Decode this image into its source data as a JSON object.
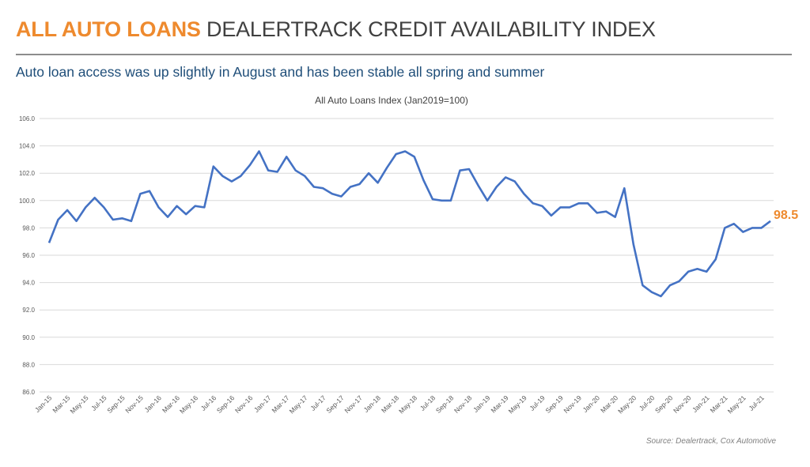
{
  "header": {
    "title_highlight": "ALL AUTO LOANS",
    "title_rest": "DEALERTRACK CREDIT AVAILABILITY INDEX",
    "subtitle": "Auto loan access was up slightly in August and has been stable all spring and summer"
  },
  "colors": {
    "accent": "#ee8a2e",
    "line": "#4472c4",
    "subtitle": "#1f4e79",
    "grid": "#d9d9d9"
  },
  "chart_data": {
    "type": "line",
    "title": "All Auto Loans Index (Jan2019=100)",
    "xlabel": "",
    "ylabel": "",
    "ylim": [
      86.0,
      106.0
    ],
    "yticks": [
      "86.0",
      "88.0",
      "90.0",
      "92.0",
      "94.0",
      "96.0",
      "98.0",
      "100.0",
      "102.0",
      "104.0",
      "106.0"
    ],
    "grid": true,
    "legend": "none",
    "x_tick_labels": [
      "Jan-15",
      "Mar-15",
      "May-15",
      "Jul-15",
      "Sep-15",
      "Nov-15",
      "Jan-16",
      "Mar-16",
      "May-16",
      "Jul-16",
      "Sep-16",
      "Nov-16",
      "Jan-17",
      "Mar-17",
      "May-17",
      "Jul-17",
      "Sep-17",
      "Nov-17",
      "Jan-18",
      "Mar-18",
      "May-18",
      "Jul-18",
      "Sep-18",
      "Nov-18",
      "Jan-19",
      "Mar-19",
      "May-19",
      "Jul-19",
      "Sep-19",
      "Nov-19",
      "Jan-20",
      "Mar-20",
      "May-20",
      "Jul-20",
      "Sep-20",
      "Nov-20",
      "Jan-21",
      "Mar-21",
      "May-21",
      "Jul-21"
    ],
    "series": [
      {
        "values": [
          96.9,
          98.6,
          99.3,
          98.5,
          99.5,
          100.2,
          99.5,
          98.6,
          98.7,
          98.5,
          100.5,
          100.7,
          99.5,
          98.8,
          99.6,
          99.0,
          99.6,
          99.5,
          102.5,
          101.8,
          101.4,
          101.8,
          102.6,
          103.6,
          102.2,
          102.1,
          103.2,
          102.2,
          101.8,
          101.0,
          100.9,
          100.5,
          100.3,
          101.0,
          101.2,
          102.0,
          101.3,
          102.4,
          103.4,
          103.6,
          103.2,
          101.5,
          100.1,
          100.0,
          100.0,
          102.2,
          102.3,
          101.1,
          100.0,
          101.0,
          101.7,
          101.4,
          100.5,
          99.8,
          99.6,
          98.9,
          99.5,
          99.5,
          99.8,
          99.8,
          99.1,
          99.2,
          98.8,
          100.9,
          96.8,
          93.8,
          93.3,
          93.0,
          93.8,
          94.1,
          94.8,
          95.0,
          94.8,
          95.7,
          98.0,
          98.3,
          97.7,
          98.0,
          98.0,
          98.5
        ]
      }
    ],
    "end_label": "98.5"
  },
  "footer": {
    "source": "Source: Dealertrack, Cox Automotive"
  }
}
